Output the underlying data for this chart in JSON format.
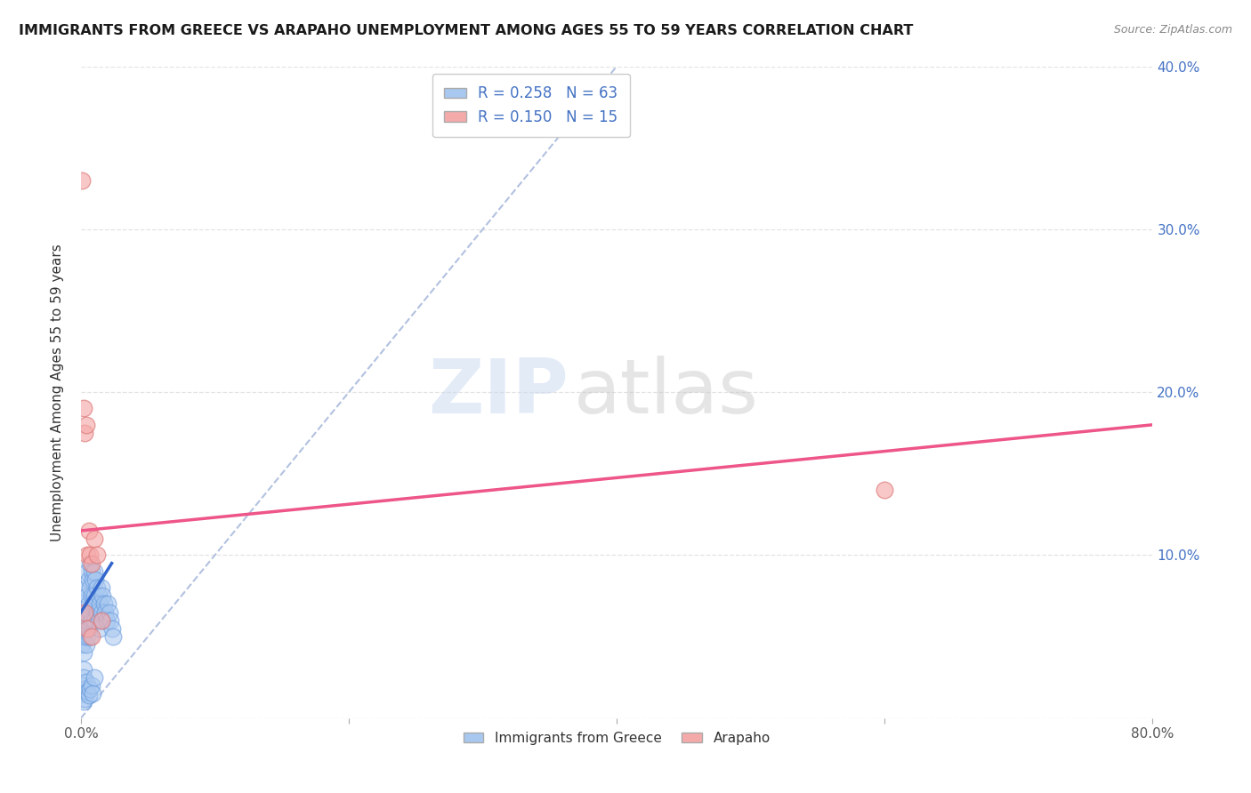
{
  "title": "IMMIGRANTS FROM GREECE VS ARAPAHO UNEMPLOYMENT AMONG AGES 55 TO 59 YEARS CORRELATION CHART",
  "source": "Source: ZipAtlas.com",
  "ylabel": "Unemployment Among Ages 55 to 59 years",
  "xlim": [
    0.0,
    0.8
  ],
  "ylim": [
    0.0,
    0.4
  ],
  "xticks": [
    0.0,
    0.2,
    0.4,
    0.6,
    0.8
  ],
  "xticklabels": [
    "0.0%",
    "",
    "",
    "",
    "80.0%"
  ],
  "yticks": [
    0.0,
    0.1,
    0.2,
    0.3,
    0.4
  ],
  "left_yticklabels": [
    "",
    "",
    "",
    "",
    ""
  ],
  "right_yticklabels": [
    "",
    "10.0%",
    "20.0%",
    "30.0%",
    "40.0%"
  ],
  "greece_color": "#A8C8F0",
  "greece_edge_color": "#6699DD",
  "arapaho_color": "#F5AAAA",
  "arapaho_edge_color": "#DD7777",
  "greece_trend_color": "#3366CC",
  "arapaho_trend_color": "#EE5588",
  "greece_R": 0.258,
  "greece_N": 63,
  "arapaho_R": 0.15,
  "arapaho_N": 15,
  "watermark_zip": "ZIP",
  "watermark_atlas": "atlas",
  "diag_line_color": "#AABBDD",
  "grid_color": "#DDDDDD",
  "greece_points_x": [
    0.001,
    0.001,
    0.002,
    0.002,
    0.002,
    0.003,
    0.003,
    0.003,
    0.004,
    0.004,
    0.004,
    0.005,
    0.005,
    0.005,
    0.005,
    0.006,
    0.006,
    0.006,
    0.007,
    0.007,
    0.007,
    0.007,
    0.008,
    0.008,
    0.008,
    0.009,
    0.009,
    0.01,
    0.01,
    0.01,
    0.011,
    0.011,
    0.012,
    0.012,
    0.013,
    0.013,
    0.014,
    0.014,
    0.015,
    0.015,
    0.016,
    0.016,
    0.017,
    0.018,
    0.019,
    0.02,
    0.021,
    0.022,
    0.023,
    0.024,
    0.001,
    0.001,
    0.002,
    0.002,
    0.003,
    0.003,
    0.004,
    0.005,
    0.006,
    0.007,
    0.008,
    0.009,
    0.01
  ],
  "greece_points_y": [
    0.06,
    0.045,
    0.055,
    0.04,
    0.03,
    0.07,
    0.06,
    0.05,
    0.08,
    0.065,
    0.045,
    0.09,
    0.075,
    0.06,
    0.05,
    0.085,
    0.07,
    0.055,
    0.095,
    0.08,
    0.065,
    0.05,
    0.09,
    0.075,
    0.06,
    0.085,
    0.07,
    0.09,
    0.075,
    0.06,
    0.085,
    0.07,
    0.08,
    0.065,
    0.075,
    0.06,
    0.07,
    0.055,
    0.08,
    0.065,
    0.075,
    0.06,
    0.07,
    0.065,
    0.06,
    0.07,
    0.065,
    0.06,
    0.055,
    0.05,
    0.02,
    0.015,
    0.025,
    0.01,
    0.018,
    0.012,
    0.022,
    0.016,
    0.014,
    0.018,
    0.02,
    0.015,
    0.025
  ],
  "arapaho_points_x": [
    0.001,
    0.002,
    0.003,
    0.004,
    0.005,
    0.006,
    0.007,
    0.008,
    0.01,
    0.012,
    0.015,
    0.6,
    0.003,
    0.005,
    0.008
  ],
  "arapaho_points_y": [
    0.33,
    0.19,
    0.175,
    0.18,
    0.1,
    0.115,
    0.1,
    0.095,
    0.11,
    0.1,
    0.06,
    0.14,
    0.065,
    0.055,
    0.05
  ],
  "greece_trend_x0": 0.0,
  "greece_trend_x1": 0.023,
  "greece_trend_y0": 0.065,
  "greece_trend_y1": 0.095,
  "arapaho_trend_x0": 0.0,
  "arapaho_trend_x1": 0.8,
  "arapaho_trend_y0": 0.115,
  "arapaho_trend_y1": 0.18
}
